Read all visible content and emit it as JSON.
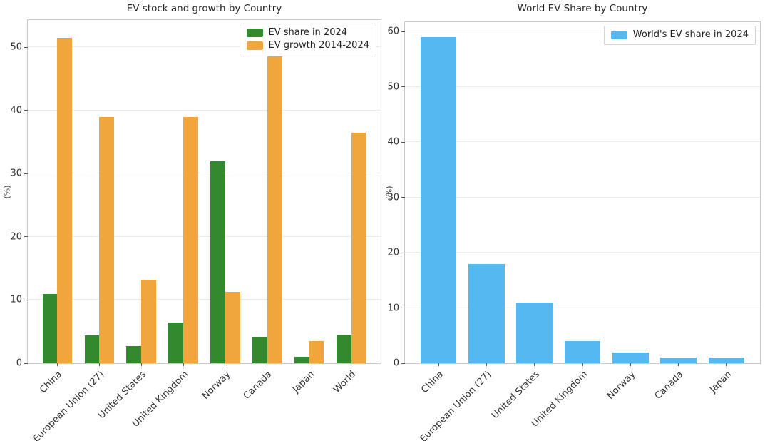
{
  "chart_data": [
    {
      "type": "bar",
      "title": "EV stock and growth by Country",
      "xlabel": "",
      "ylabel": "(%)",
      "categories": [
        "China",
        "European Union (27)",
        "United States",
        "United Kingdom",
        "Norway",
        "Canada",
        "Japan",
        "World"
      ],
      "series": [
        {
          "name": "EV share in 2024",
          "color": "#338a2e",
          "values": [
            11,
            4.4,
            2.7,
            6.4,
            32,
            4.2,
            1,
            4.5
          ]
        },
        {
          "name": "EV growth 2014-2024",
          "color": "#f0a63c",
          "values": [
            51.5,
            39,
            13.2,
            39,
            11.3,
            49,
            3.5,
            36.5
          ]
        }
      ],
      "ylim": [
        0,
        54.3
      ],
      "yticks": [
        0,
        10,
        20,
        30,
        40,
        50
      ],
      "bar_width": 0.35,
      "grid": true,
      "legend_position": "upper right",
      "x_tick_rotation": 45
    },
    {
      "type": "bar",
      "title": "World EV Share by Country",
      "xlabel": "",
      "ylabel": "(%)",
      "categories": [
        "China",
        "European Union (27)",
        "United States",
        "United Kingdom",
        "Norway",
        "Canada",
        "Japan"
      ],
      "series": [
        {
          "name": "World's EV share in 2024",
          "color": "#55b8f0",
          "values": [
            59,
            18,
            11,
            4,
            2,
            1,
            1
          ]
        }
      ],
      "ylim": [
        0,
        61.7
      ],
      "yticks": [
        0,
        10,
        20,
        30,
        40,
        50,
        60
      ],
      "bar_width": 0.75,
      "grid": true,
      "legend_position": "upper right",
      "x_tick_rotation": 45
    }
  ]
}
